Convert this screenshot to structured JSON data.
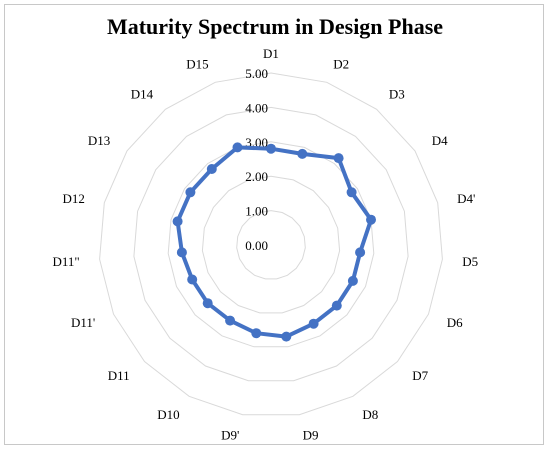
{
  "chart_data": {
    "type": "radar",
    "title": "Maturity Spectrum in Design Phase",
    "categories": [
      "D1",
      "D2",
      "D3",
      "D4",
      "D4'",
      "D5",
      "D6",
      "D7",
      "D8",
      "D9",
      "D9'",
      "D10",
      "D11",
      "D11'",
      "D11\"",
      "D12",
      "D13",
      "D14",
      "D15"
    ],
    "series": [
      {
        "values": [
          2.8,
          2.8,
          3.2,
          2.8,
          3.0,
          2.6,
          2.6,
          2.6,
          2.6,
          2.7,
          2.6,
          2.5,
          2.5,
          2.5,
          2.6,
          2.8,
          2.8,
          2.8,
          3.0
        ]
      }
    ],
    "rlim": [
      0,
      5
    ],
    "ticks": [
      "0.00",
      "1.00",
      "2.00",
      "3.00",
      "4.00",
      "5.00"
    ],
    "grid": true,
    "legend": "none",
    "colors": {
      "series": "#4472c4",
      "grid": "#d9d9d9"
    }
  }
}
